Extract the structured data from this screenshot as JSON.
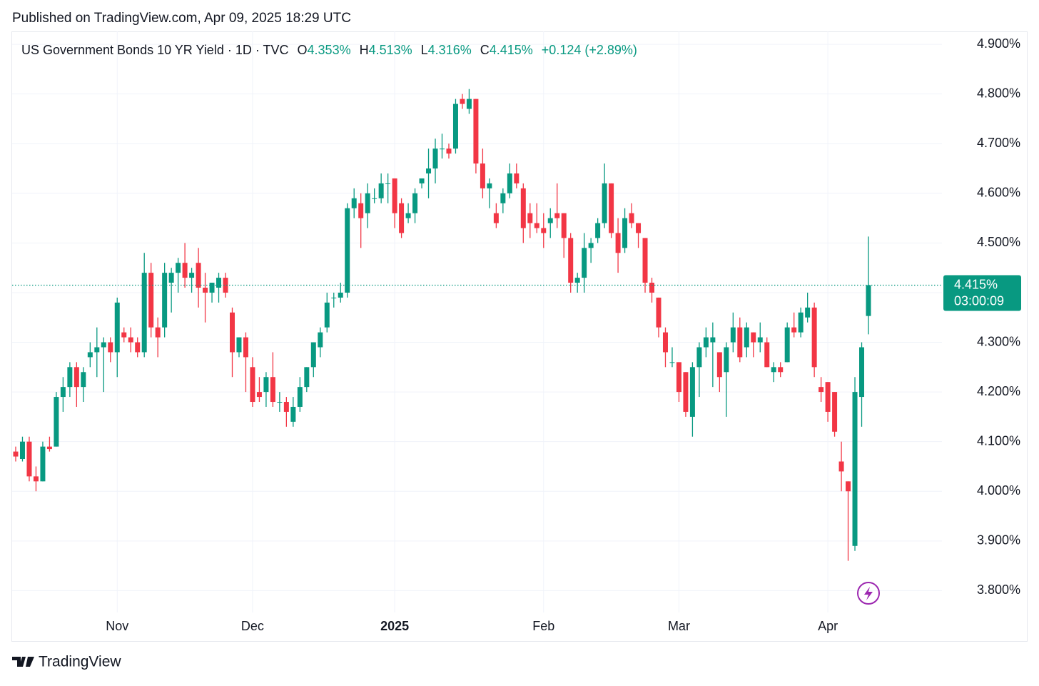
{
  "header": {
    "title": "Published on TradingView.com, Apr 09, 2025 18:29 UTC"
  },
  "footer": {
    "brand": "TradingView"
  },
  "chart_data": {
    "type": "candlestick",
    "symbol": "US Government Bonds 10 YR Yield · 1D · TVC",
    "ohlc_legend": [
      {
        "key": "O",
        "value": "4.353%"
      },
      {
        "key": "H",
        "value": "4.513%"
      },
      {
        "key": "L",
        "value": "4.316%"
      },
      {
        "key": "C",
        "value": "4.415%"
      }
    ],
    "change": "+0.124 (+2.89%)",
    "last_price_label": "4.415%",
    "countdown": "03:00:09",
    "up_color": "#089981",
    "down_color": "#f23645",
    "grid": true,
    "ylim": [
      3.756,
      4.926
    ],
    "yticks": [
      {
        "value": 3.8,
        "label": "3.800%"
      },
      {
        "value": 3.9,
        "label": "3.900%"
      },
      {
        "value": 4.0,
        "label": "4.000%"
      },
      {
        "value": 4.1,
        "label": "4.100%"
      },
      {
        "value": 4.2,
        "label": "4.200%"
      },
      {
        "value": 4.3,
        "label": "4.300%"
      },
      {
        "value": 4.4,
        "label": "4.400%"
      },
      {
        "value": 4.5,
        "label": "4.500%"
      },
      {
        "value": 4.6,
        "label": "4.600%"
      },
      {
        "value": 4.7,
        "label": "4.700%"
      },
      {
        "value": 4.8,
        "label": "4.800%"
      },
      {
        "value": 4.9,
        "label": "4.900%"
      }
    ],
    "categories": [
      null,
      null,
      null,
      null,
      null,
      null,
      null,
      null,
      null,
      null,
      null,
      null,
      null,
      null,
      null,
      "Nov",
      null,
      null,
      null,
      null,
      null,
      null,
      null,
      null,
      null,
      null,
      null,
      null,
      null,
      null,
      null,
      null,
      null,
      null,
      null,
      "Dec",
      null,
      null,
      null,
      null,
      null,
      null,
      null,
      null,
      null,
      null,
      null,
      null,
      null,
      null,
      null,
      null,
      null,
      null,
      null,
      null,
      "2025",
      null,
      null,
      null,
      null,
      null,
      null,
      null,
      null,
      null,
      null,
      null,
      null,
      null,
      null,
      null,
      null,
      null,
      null,
      null,
      null,
      null,
      "Feb",
      null,
      null,
      null,
      null,
      null,
      null,
      null,
      null,
      null,
      null,
      null,
      null,
      null,
      null,
      null,
      null,
      null,
      null,
      null,
      "Mar",
      null,
      null,
      null,
      null,
      null,
      null,
      null,
      null,
      null,
      null,
      null,
      null,
      null,
      null,
      null,
      null,
      null,
      null,
      null,
      null,
      null,
      "Apr",
      null,
      null,
      null,
      null,
      null,
      null
    ],
    "ohlc": [
      [
        4.08,
        4.09,
        4.06,
        4.07
      ],
      [
        4.065,
        4.11,
        4.06,
        4.1
      ],
      [
        4.1,
        4.11,
        4.02,
        4.03
      ],
      [
        4.03,
        4.05,
        4.0,
        4.02
      ],
      [
        4.02,
        4.1,
        4.02,
        4.09
      ],
      [
        4.09,
        4.11,
        4.08,
        4.085
      ],
      [
        4.09,
        4.2,
        4.09,
        4.19
      ],
      [
        4.19,
        4.23,
        4.16,
        4.21
      ],
      [
        4.21,
        4.26,
        4.19,
        4.25
      ],
      [
        4.25,
        4.26,
        4.17,
        4.21
      ],
      [
        4.21,
        4.25,
        4.18,
        4.24
      ],
      [
        4.27,
        4.3,
        4.25,
        4.28
      ],
      [
        4.28,
        4.33,
        4.23,
        4.29
      ],
      [
        4.29,
        4.31,
        4.2,
        4.3
      ],
      [
        4.3,
        4.31,
        4.26,
        4.28
      ],
      [
        4.28,
        4.39,
        4.23,
        4.38
      ],
      [
        4.32,
        4.33,
        4.3,
        4.31
      ],
      [
        4.31,
        4.33,
        4.28,
        4.3
      ],
      [
        4.3,
        4.31,
        4.27,
        4.28
      ],
      [
        4.28,
        4.48,
        4.27,
        4.44
      ],
      [
        4.44,
        4.46,
        4.31,
        4.33
      ],
      [
        4.33,
        4.35,
        4.27,
        4.31
      ],
      [
        4.33,
        4.46,
        4.31,
        4.44
      ],
      [
        4.42,
        4.45,
        4.36,
        4.44
      ],
      [
        4.44,
        4.47,
        4.4,
        4.46
      ],
      [
        4.46,
        4.5,
        4.41,
        4.43
      ],
      [
        4.43,
        4.45,
        4.4,
        4.44
      ],
      [
        4.46,
        4.49,
        4.37,
        4.41
      ],
      [
        4.41,
        4.44,
        4.34,
        4.4
      ],
      [
        4.4,
        4.42,
        4.38,
        4.42
      ],
      [
        4.41,
        4.44,
        4.38,
        4.43
      ],
      [
        4.43,
        4.44,
        4.39,
        4.4
      ],
      [
        4.36,
        4.37,
        4.23,
        4.28
      ],
      [
        4.28,
        4.31,
        4.27,
        4.31
      ],
      [
        4.31,
        4.32,
        4.2,
        4.27
      ],
      [
        4.25,
        4.27,
        4.17,
        4.18
      ],
      [
        4.2,
        4.23,
        4.18,
        4.19
      ],
      [
        4.2,
        4.24,
        4.17,
        4.23
      ],
      [
        4.23,
        4.28,
        4.17,
        4.18
      ],
      [
        4.18,
        4.2,
        4.16,
        4.18
      ],
      [
        4.18,
        4.19,
        4.13,
        4.16
      ],
      [
        4.14,
        4.19,
        4.13,
        4.17
      ],
      [
        4.17,
        4.23,
        4.16,
        4.21
      ],
      [
        4.21,
        4.25,
        4.2,
        4.25
      ],
      [
        4.25,
        4.3,
        4.23,
        4.3
      ],
      [
        4.29,
        4.33,
        4.27,
        4.32
      ],
      [
        4.33,
        4.4,
        4.32,
        4.38
      ],
      [
        4.39,
        4.4,
        4.37,
        4.39
      ],
      [
        4.39,
        4.42,
        4.38,
        4.4
      ],
      [
        4.4,
        4.58,
        4.39,
        4.57
      ],
      [
        4.57,
        4.61,
        4.55,
        4.59
      ],
      [
        4.58,
        4.6,
        4.49,
        4.55
      ],
      [
        4.56,
        4.62,
        4.53,
        4.6
      ],
      [
        4.59,
        4.61,
        4.58,
        4.59
      ],
      [
        4.59,
        4.64,
        4.58,
        4.62
      ],
      [
        4.62,
        4.64,
        4.58,
        4.62
      ],
      [
        4.63,
        4.63,
        4.53,
        4.56
      ],
      [
        4.58,
        4.59,
        4.51,
        4.52
      ],
      [
        4.55,
        4.58,
        4.54,
        4.56
      ],
      [
        4.56,
        4.61,
        4.54,
        4.6
      ],
      [
        4.62,
        4.63,
        4.61,
        4.63
      ],
      [
        4.64,
        4.69,
        4.59,
        4.65
      ],
      [
        4.65,
        4.71,
        4.62,
        4.69
      ],
      [
        4.69,
        4.72,
        4.67,
        4.69
      ],
      [
        4.69,
        4.7,
        4.67,
        4.68
      ],
      [
        4.69,
        4.79,
        4.68,
        4.78
      ],
      [
        4.79,
        4.8,
        4.77,
        4.78
      ],
      [
        4.77,
        4.81,
        4.76,
        4.79
      ],
      [
        4.79,
        4.79,
        4.64,
        4.66
      ],
      [
        4.66,
        4.69,
        4.59,
        4.61
      ],
      [
        4.61,
        4.63,
        4.57,
        4.62
      ],
      [
        4.56,
        4.58,
        4.53,
        4.54
      ],
      [
        4.58,
        4.61,
        4.56,
        4.6
      ],
      [
        4.6,
        4.66,
        4.59,
        4.64
      ],
      [
        4.64,
        4.66,
        4.61,
        4.62
      ],
      [
        4.61,
        4.62,
        4.5,
        4.53
      ],
      [
        4.56,
        4.58,
        4.51,
        4.54
      ],
      [
        4.54,
        4.58,
        4.52,
        4.53
      ],
      [
        4.53,
        4.56,
        4.49,
        4.52
      ],
      [
        4.54,
        4.57,
        4.51,
        4.55
      ],
      [
        4.56,
        4.62,
        4.53,
        4.55
      ],
      [
        4.56,
        4.56,
        4.47,
        4.51
      ],
      [
        4.51,
        4.52,
        4.4,
        4.42
      ],
      [
        4.42,
        4.44,
        4.4,
        4.43
      ],
      [
        4.43,
        4.52,
        4.4,
        4.49
      ],
      [
        4.49,
        4.51,
        4.46,
        4.5
      ],
      [
        4.51,
        4.55,
        4.5,
        4.54
      ],
      [
        4.54,
        4.66,
        4.53,
        4.62
      ],
      [
        4.62,
        4.62,
        4.51,
        4.52
      ],
      [
        4.52,
        4.55,
        4.44,
        4.48
      ],
      [
        4.49,
        4.57,
        4.48,
        4.55
      ],
      [
        4.56,
        4.58,
        4.53,
        4.54
      ],
      [
        4.54,
        4.54,
        4.49,
        4.52
      ],
      [
        4.51,
        4.51,
        4.4,
        4.42
      ],
      [
        4.42,
        4.43,
        4.38,
        4.4
      ],
      [
        4.39,
        4.39,
        4.31,
        4.33
      ],
      [
        4.32,
        4.33,
        4.25,
        4.28
      ],
      [
        4.26,
        4.29,
        4.25,
        4.26
      ],
      [
        4.26,
        4.26,
        4.18,
        4.2
      ],
      [
        4.24,
        4.24,
        4.15,
        4.16
      ],
      [
        4.15,
        4.26,
        4.11,
        4.25
      ],
      [
        4.25,
        4.3,
        4.19,
        4.29
      ],
      [
        4.29,
        4.33,
        4.27,
        4.31
      ],
      [
        4.3,
        4.34,
        4.21,
        4.31
      ],
      [
        4.28,
        4.28,
        4.2,
        4.23
      ],
      [
        4.24,
        4.3,
        4.15,
        4.29
      ],
      [
        4.3,
        4.36,
        4.28,
        4.33
      ],
      [
        4.33,
        4.35,
        4.26,
        4.27
      ],
      [
        4.29,
        4.34,
        4.27,
        4.33
      ],
      [
        4.32,
        4.32,
        4.27,
        4.3
      ],
      [
        4.3,
        4.34,
        4.28,
        4.31
      ],
      [
        4.3,
        4.31,
        4.25,
        4.25
      ],
      [
        4.24,
        4.26,
        4.22,
        4.25
      ],
      [
        4.25,
        4.26,
        4.23,
        4.24
      ],
      [
        4.26,
        4.34,
        4.26,
        4.33
      ],
      [
        4.33,
        4.36,
        4.31,
        4.32
      ],
      [
        4.32,
        4.37,
        4.31,
        4.36
      ],
      [
        4.35,
        4.4,
        4.34,
        4.37
      ],
      [
        4.37,
        4.38,
        4.23,
        4.25
      ],
      [
        4.21,
        4.23,
        4.18,
        4.2
      ],
      [
        4.22,
        4.22,
        4.14,
        4.16
      ],
      [
        4.2,
        4.2,
        4.11,
        4.12
      ],
      [
        4.06,
        4.1,
        4.0,
        4.04
      ],
      [
        4.02,
        4.02,
        3.86,
        4.0
      ],
      [
        3.89,
        4.23,
        3.88,
        4.2
      ],
      [
        4.19,
        4.3,
        4.13,
        4.29
      ],
      [
        4.353,
        4.513,
        4.316,
        4.415
      ]
    ]
  }
}
